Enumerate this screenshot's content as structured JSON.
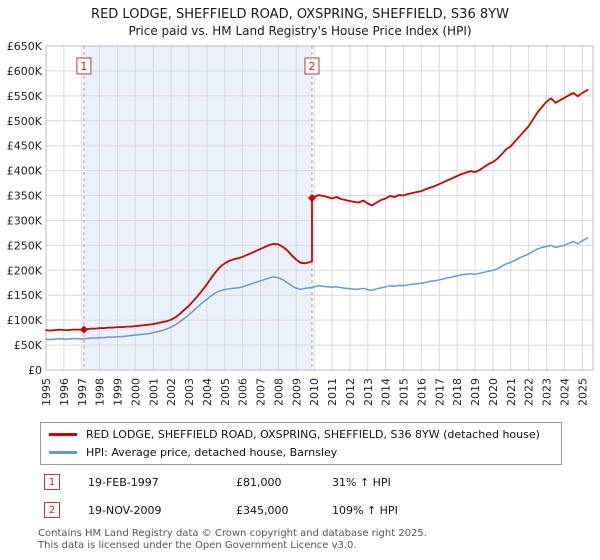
{
  "title": "RED LODGE, SHEFFIELD ROAD, OXSPRING, SHEFFIELD, S36 8YW",
  "subtitle": "Price paid vs. HM Land Registry's House Price Index (HPI)",
  "chart_data": {
    "type": "line",
    "xlim": [
      1995,
      2025.6
    ],
    "ylim": [
      0,
      650
    ],
    "y_unit": "GBP thousands",
    "grid": true,
    "legend_position": "bottom",
    "x_ticks": [
      1995,
      1996,
      1997,
      1998,
      1999,
      2000,
      2001,
      2002,
      2003,
      2004,
      2005,
      2006,
      2007,
      2008,
      2009,
      2010,
      2011,
      2012,
      2013,
      2014,
      2015,
      2016,
      2017,
      2018,
      2019,
      2020,
      2021,
      2022,
      2023,
      2024,
      2025
    ],
    "y_ticks": {
      "values": [
        0,
        50,
        100,
        150,
        200,
        250,
        300,
        350,
        400,
        450,
        500,
        550,
        600,
        650
      ],
      "labels": [
        "£0",
        "£50K",
        "£100K",
        "£150K",
        "£200K",
        "£250K",
        "£300K",
        "£350K",
        "£400K",
        "£450K",
        "£500K",
        "£550K",
        "£600K",
        "£650K"
      ]
    },
    "shaded_region": {
      "from": 1997.12,
      "to": 2009.88,
      "color": "#eaf1fb"
    },
    "markers": [
      {
        "label": "1",
        "x": 1997.12,
        "y": 81
      },
      {
        "label": "2",
        "x": 2009.88,
        "y": 345
      }
    ],
    "series": [
      {
        "name": "RED LODGE, SHEFFIELD ROAD, OXSPRING, SHEFFIELD, S36 8YW (detached house)",
        "color": "#cc0000",
        "width": 1.8,
        "points": [
          [
            1995,
            80
          ],
          [
            1995.25,
            79
          ],
          [
            1995.5,
            80
          ],
          [
            1995.75,
            81
          ],
          [
            1996,
            80
          ],
          [
            1996.25,
            80
          ],
          [
            1996.5,
            81
          ],
          [
            1996.75,
            81
          ],
          [
            1997,
            81
          ],
          [
            1997.12,
            81
          ],
          [
            1997.25,
            82
          ],
          [
            1997.5,
            83
          ],
          [
            1997.75,
            83
          ],
          [
            1998,
            84
          ],
          [
            1998.25,
            84
          ],
          [
            1998.5,
            85
          ],
          [
            1998.75,
            85
          ],
          [
            1999,
            86
          ],
          [
            1999.25,
            86
          ],
          [
            1999.5,
            87
          ],
          [
            1999.75,
            87
          ],
          [
            2000,
            88
          ],
          [
            2000.25,
            89
          ],
          [
            2000.5,
            90
          ],
          [
            2000.75,
            91
          ],
          [
            2001,
            92
          ],
          [
            2001.25,
            94
          ],
          [
            2001.5,
            96
          ],
          [
            2001.75,
            98
          ],
          [
            2002,
            101
          ],
          [
            2002.25,
            106
          ],
          [
            2002.5,
            113
          ],
          [
            2002.75,
            121
          ],
          [
            2003,
            129
          ],
          [
            2003.25,
            139
          ],
          [
            2003.5,
            149
          ],
          [
            2003.75,
            160
          ],
          [
            2004,
            172
          ],
          [
            2004.25,
            185
          ],
          [
            2004.5,
            197
          ],
          [
            2004.75,
            207
          ],
          [
            2005,
            214
          ],
          [
            2005.25,
            219
          ],
          [
            2005.5,
            222
          ],
          [
            2005.75,
            224
          ],
          [
            2006,
            227
          ],
          [
            2006.25,
            231
          ],
          [
            2006.5,
            235
          ],
          [
            2006.75,
            239
          ],
          [
            2007,
            243
          ],
          [
            2007.25,
            247
          ],
          [
            2007.5,
            251
          ],
          [
            2007.75,
            253
          ],
          [
            2008,
            252
          ],
          [
            2008.25,
            247
          ],
          [
            2008.5,
            240
          ],
          [
            2008.75,
            230
          ],
          [
            2009,
            221
          ],
          [
            2009.25,
            215
          ],
          [
            2009.5,
            214
          ],
          [
            2009.75,
            216
          ],
          [
            2009.88,
            218
          ],
          [
            2009.88,
            345
          ],
          [
            2010,
            347
          ],
          [
            2010.25,
            351
          ],
          [
            2010.5,
            349
          ],
          [
            2010.75,
            347
          ],
          [
            2011,
            344
          ],
          [
            2011.25,
            347
          ],
          [
            2011.5,
            343
          ],
          [
            2011.75,
            341
          ],
          [
            2012,
            339
          ],
          [
            2012.25,
            337
          ],
          [
            2012.5,
            336
          ],
          [
            2012.75,
            340
          ],
          [
            2013,
            334
          ],
          [
            2013.25,
            330
          ],
          [
            2013.5,
            336
          ],
          [
            2013.75,
            341
          ],
          [
            2014,
            344
          ],
          [
            2014.25,
            349
          ],
          [
            2014.5,
            347
          ],
          [
            2014.75,
            351
          ],
          [
            2015,
            350
          ],
          [
            2015.25,
            353
          ],
          [
            2015.5,
            355
          ],
          [
            2015.75,
            357
          ],
          [
            2016,
            359
          ],
          [
            2016.25,
            363
          ],
          [
            2016.5,
            366
          ],
          [
            2016.75,
            369
          ],
          [
            2017,
            373
          ],
          [
            2017.25,
            377
          ],
          [
            2017.5,
            381
          ],
          [
            2017.75,
            385
          ],
          [
            2018,
            389
          ],
          [
            2018.25,
            393
          ],
          [
            2018.5,
            396
          ],
          [
            2018.75,
            399
          ],
          [
            2019,
            397
          ],
          [
            2019.25,
            401
          ],
          [
            2019.5,
            407
          ],
          [
            2019.75,
            413
          ],
          [
            2020,
            417
          ],
          [
            2020.25,
            424
          ],
          [
            2020.5,
            433
          ],
          [
            2020.75,
            443
          ],
          [
            2021,
            449
          ],
          [
            2021.25,
            459
          ],
          [
            2021.5,
            469
          ],
          [
            2021.75,
            479
          ],
          [
            2022,
            489
          ],
          [
            2022.25,
            503
          ],
          [
            2022.5,
            517
          ],
          [
            2022.75,
            528
          ],
          [
            2023,
            538
          ],
          [
            2023.25,
            545
          ],
          [
            2023.5,
            536
          ],
          [
            2023.75,
            541
          ],
          [
            2024,
            546
          ],
          [
            2024.25,
            551
          ],
          [
            2024.5,
            556
          ],
          [
            2024.75,
            549
          ],
          [
            2025,
            556
          ],
          [
            2025.3,
            562
          ]
        ]
      },
      {
        "name": "HPI: Average price, detached house, Barnsley",
        "color": "#6699cc",
        "width": 1.5,
        "points": [
          [
            1995,
            62
          ],
          [
            1995.25,
            61
          ],
          [
            1995.5,
            62
          ],
          [
            1995.75,
            63
          ],
          [
            1996,
            62
          ],
          [
            1996.25,
            62
          ],
          [
            1996.5,
            63
          ],
          [
            1996.75,
            63
          ],
          [
            1997,
            62
          ],
          [
            1997.25,
            63
          ],
          [
            1997.5,
            64
          ],
          [
            1997.75,
            64
          ],
          [
            1998,
            65
          ],
          [
            1998.25,
            65
          ],
          [
            1998.5,
            66
          ],
          [
            1998.75,
            66
          ],
          [
            1999,
            67
          ],
          [
            1999.25,
            67
          ],
          [
            1999.5,
            68
          ],
          [
            1999.75,
            69
          ],
          [
            2000,
            70
          ],
          [
            2000.25,
            71
          ],
          [
            2000.5,
            72
          ],
          [
            2000.75,
            73
          ],
          [
            2001,
            75
          ],
          [
            2001.25,
            77
          ],
          [
            2001.5,
            79
          ],
          [
            2001.75,
            82
          ],
          [
            2002,
            86
          ],
          [
            2002.25,
            91
          ],
          [
            2002.5,
            97
          ],
          [
            2002.75,
            104
          ],
          [
            2003,
            111
          ],
          [
            2003.25,
            119
          ],
          [
            2003.5,
            127
          ],
          [
            2003.75,
            135
          ],
          [
            2004,
            142
          ],
          [
            2004.25,
            149
          ],
          [
            2004.5,
            155
          ],
          [
            2004.75,
            159
          ],
          [
            2005,
            161
          ],
          [
            2005.25,
            163
          ],
          [
            2005.5,
            164
          ],
          [
            2005.75,
            165
          ],
          [
            2006,
            167
          ],
          [
            2006.25,
            170
          ],
          [
            2006.5,
            173
          ],
          [
            2006.75,
            176
          ],
          [
            2007,
            179
          ],
          [
            2007.25,
            182
          ],
          [
            2007.5,
            185
          ],
          [
            2007.75,
            187
          ],
          [
            2008,
            185
          ],
          [
            2008.25,
            181
          ],
          [
            2008.5,
            175
          ],
          [
            2008.75,
            169
          ],
          [
            2009,
            164
          ],
          [
            2009.25,
            162
          ],
          [
            2009.5,
            164
          ],
          [
            2009.75,
            165
          ],
          [
            2009.88,
            165
          ],
          [
            2010,
            167
          ],
          [
            2010.25,
            169
          ],
          [
            2010.5,
            168
          ],
          [
            2010.75,
            167
          ],
          [
            2011,
            166
          ],
          [
            2011.25,
            167
          ],
          [
            2011.5,
            165
          ],
          [
            2011.75,
            164
          ],
          [
            2012,
            163
          ],
          [
            2012.25,
            162
          ],
          [
            2012.5,
            162
          ],
          [
            2012.75,
            164
          ],
          [
            2013,
            161
          ],
          [
            2013.25,
            160
          ],
          [
            2013.5,
            163
          ],
          [
            2013.75,
            165
          ],
          [
            2014,
            167
          ],
          [
            2014.25,
            169
          ],
          [
            2014.5,
            168
          ],
          [
            2014.75,
            170
          ],
          [
            2015,
            169
          ],
          [
            2015.25,
            171
          ],
          [
            2015.5,
            172
          ],
          [
            2015.75,
            173
          ],
          [
            2016,
            174
          ],
          [
            2016.25,
            176
          ],
          [
            2016.5,
            178
          ],
          [
            2016.75,
            179
          ],
          [
            2017,
            181
          ],
          [
            2017.25,
            183
          ],
          [
            2017.5,
            185
          ],
          [
            2017.75,
            187
          ],
          [
            2018,
            189
          ],
          [
            2018.25,
            191
          ],
          [
            2018.5,
            192
          ],
          [
            2018.75,
            193
          ],
          [
            2019,
            192
          ],
          [
            2019.25,
            194
          ],
          [
            2019.5,
            196
          ],
          [
            2019.75,
            198
          ],
          [
            2020,
            200
          ],
          [
            2020.25,
            203
          ],
          [
            2020.5,
            208
          ],
          [
            2020.75,
            213
          ],
          [
            2021,
            216
          ],
          [
            2021.25,
            220
          ],
          [
            2021.5,
            225
          ],
          [
            2021.75,
            229
          ],
          [
            2022,
            233
          ],
          [
            2022.25,
            238
          ],
          [
            2022.5,
            243
          ],
          [
            2022.75,
            246
          ],
          [
            2023,
            248
          ],
          [
            2023.25,
            250
          ],
          [
            2023.5,
            246
          ],
          [
            2023.75,
            248
          ],
          [
            2024,
            250
          ],
          [
            2024.25,
            254
          ],
          [
            2024.5,
            258
          ],
          [
            2024.75,
            253
          ],
          [
            2025,
            259
          ],
          [
            2025.3,
            265
          ]
        ]
      }
    ]
  },
  "legend": {
    "items": [
      {
        "label": "RED LODGE, SHEFFIELD ROAD, OXSPRING, SHEFFIELD, S36 8YW (detached house)"
      },
      {
        "label": "HPI: Average price, detached house, Barnsley"
      }
    ]
  },
  "annotations": [
    {
      "num": "1",
      "date": "19-FEB-1997",
      "price": "£81,000",
      "hpi": "31% ↑ HPI"
    },
    {
      "num": "2",
      "date": "19-NOV-2009",
      "price": "£345,000",
      "hpi": "109% ↑ HPI"
    }
  ],
  "footer": {
    "line1": "Contains HM Land Registry data © Crown copyright and database right 2025.",
    "line2": "This data is licensed under the Open Government Licence v3.0."
  }
}
